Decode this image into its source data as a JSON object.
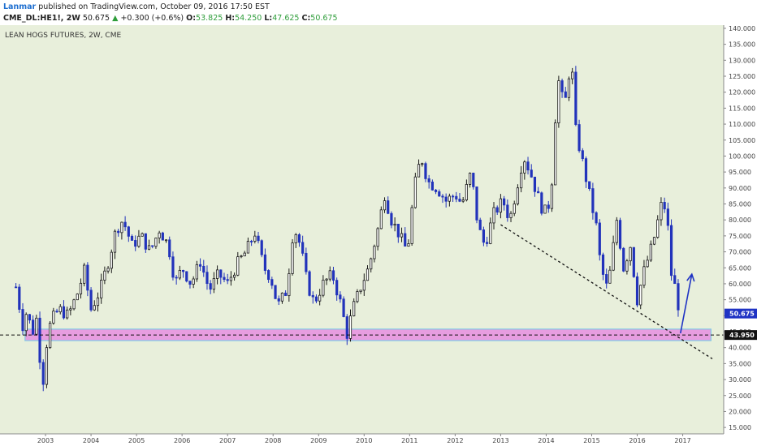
{
  "header": {
    "user": "Lanmar",
    "published_text": "published on TradingView.com, October 09, 2016 17:50 EST",
    "symbol": "CME_DL:HE1!, 2W",
    "last": "50.675",
    "change": "+0.300 (+0.6%)",
    "open_label": "O:",
    "open": "53.825",
    "high_label": "H:",
    "high": "54.250",
    "low_label": "L:",
    "low": "47.625",
    "close_label": "C:",
    "close": "50.675"
  },
  "chart_data": {
    "type": "candlestick",
    "title": "LEAN HOGS FUTURES, 2W, CME",
    "ylim": [
      13,
      141
    ],
    "yticks": [
      15,
      20,
      25,
      30,
      35,
      40,
      45,
      50,
      55,
      60,
      65,
      70,
      75,
      80,
      85,
      90,
      95,
      100,
      105,
      110,
      115,
      120,
      125,
      130,
      135,
      140
    ],
    "ytick_labels": [
      "15.000",
      "20.000",
      "25.000",
      "30.000",
      "35.000",
      "40.000",
      "45.000",
      "50.000",
      "55.000",
      "60.000",
      "65.000",
      "70.000",
      "75.000",
      "80.000",
      "85.000",
      "90.000",
      "95.000",
      "100.000",
      "105.000",
      "110.000",
      "115.000",
      "120.000",
      "125.000",
      "130.000",
      "135.000",
      "140.000"
    ],
    "xlim": [
      2002.0,
      2017.9
    ],
    "xticks": [
      2003,
      2004,
      2005,
      2006,
      2007,
      2008,
      2009,
      2010,
      2011,
      2012,
      2013,
      2014,
      2015,
      2016,
      2017
    ],
    "xtick_labels": [
      "2003",
      "2004",
      "2005",
      "2006",
      "2007",
      "2008",
      "2009",
      "2010",
      "2011",
      "2012",
      "2013",
      "2014",
      "2015",
      "2016",
      "2017"
    ],
    "price_path": [
      [
        2002.35,
        59
      ],
      [
        2002.5,
        47
      ],
      [
        2002.6,
        52
      ],
      [
        2002.7,
        44
      ],
      [
        2002.82,
        50
      ],
      [
        2002.88,
        36
      ],
      [
        2002.95,
        30
      ],
      [
        2003.05,
        45
      ],
      [
        2003.15,
        49
      ],
      [
        2003.3,
        52
      ],
      [
        2003.5,
        50
      ],
      [
        2003.7,
        57
      ],
      [
        2003.85,
        64
      ],
      [
        2004.0,
        52
      ],
      [
        2004.2,
        58
      ],
      [
        2004.4,
        68
      ],
      [
        2004.55,
        77
      ],
      [
        2004.7,
        80
      ],
      [
        2004.9,
        72
      ],
      [
        2005.1,
        75
      ],
      [
        2005.3,
        70
      ],
      [
        2005.5,
        77
      ],
      [
        2005.7,
        72
      ],
      [
        2005.85,
        60
      ],
      [
        2006.0,
        65
      ],
      [
        2006.2,
        60
      ],
      [
        2006.4,
        67
      ],
      [
        2006.6,
        58
      ],
      [
        2006.8,
        63
      ],
      [
        2007.0,
        60
      ],
      [
        2007.2,
        66
      ],
      [
        2007.4,
        70
      ],
      [
        2007.6,
        76
      ],
      [
        2007.8,
        65
      ],
      [
        2007.95,
        62
      ],
      [
        2008.1,
        53
      ],
      [
        2008.3,
        58
      ],
      [
        2008.45,
        78
      ],
      [
        2008.6,
        72
      ],
      [
        2008.75,
        60
      ],
      [
        2008.9,
        54
      ],
      [
        2009.1,
        60
      ],
      [
        2009.3,
        63
      ],
      [
        2009.5,
        53
      ],
      [
        2009.62,
        44
      ],
      [
        2009.75,
        52
      ],
      [
        2009.95,
        60
      ],
      [
        2010.1,
        65
      ],
      [
        2010.3,
        77
      ],
      [
        2010.45,
        88
      ],
      [
        2010.6,
        80
      ],
      [
        2010.75,
        76
      ],
      [
        2010.95,
        70
      ],
      [
        2011.1,
        90
      ],
      [
        2011.25,
        100
      ],
      [
        2011.4,
        92
      ],
      [
        2011.6,
        90
      ],
      [
        2011.8,
        86
      ],
      [
        2012.0,
        88
      ],
      [
        2012.15,
        85
      ],
      [
        2012.35,
        95
      ],
      [
        2012.5,
        78
      ],
      [
        2012.65,
        72
      ],
      [
        2012.85,
        82
      ],
      [
        2013.05,
        86
      ],
      [
        2013.2,
        80
      ],
      [
        2013.35,
        90
      ],
      [
        2013.5,
        100
      ],
      [
        2013.65,
        95
      ],
      [
        2013.8,
        88
      ],
      [
        2013.95,
        82
      ],
      [
        2014.1,
        86
      ],
      [
        2014.25,
        125
      ],
      [
        2014.4,
        115
      ],
      [
        2014.55,
        131
      ],
      [
        2014.65,
        108
      ],
      [
        2014.8,
        98
      ],
      [
        2014.95,
        88
      ],
      [
        2015.1,
        78
      ],
      [
        2015.2,
        65
      ],
      [
        2015.35,
        58
      ],
      [
        2015.55,
        80
      ],
      [
        2015.7,
        65
      ],
      [
        2015.85,
        72
      ],
      [
        2016.0,
        55
      ],
      [
        2016.15,
        64
      ],
      [
        2016.35,
        73
      ],
      [
        2016.55,
        86
      ],
      [
        2016.65,
        82
      ],
      [
        2016.75,
        63
      ],
      [
        2016.85,
        58
      ],
      [
        2016.93,
        50.675
      ]
    ],
    "price_line": {
      "value": 43.95,
      "label": "43.950"
    },
    "last_price": {
      "value": 50.675,
      "label": "50.675"
    },
    "support_zone": {
      "y1": 42.2,
      "y2": 45.8,
      "x1": 2002.55,
      "x2": 2017.62
    },
    "trendline": {
      "x1": 2013.0,
      "y1": 78.5,
      "x2": 2017.65,
      "y2": 36.5
    },
    "arrow": {
      "x1": 2016.95,
      "y1": 44.5,
      "x2": 2017.2,
      "y2": 63
    }
  },
  "colors": {
    "plot_bg": "#e8efdb",
    "zone_fill": "#e79de0",
    "zone_border": "#7fc9e6",
    "candle_up": "#1a1a1a",
    "candle_down": "#2233bb",
    "arrow": "#1f33c4",
    "price_line": "#111111",
    "last_price_bg": "#1f33c4"
  }
}
